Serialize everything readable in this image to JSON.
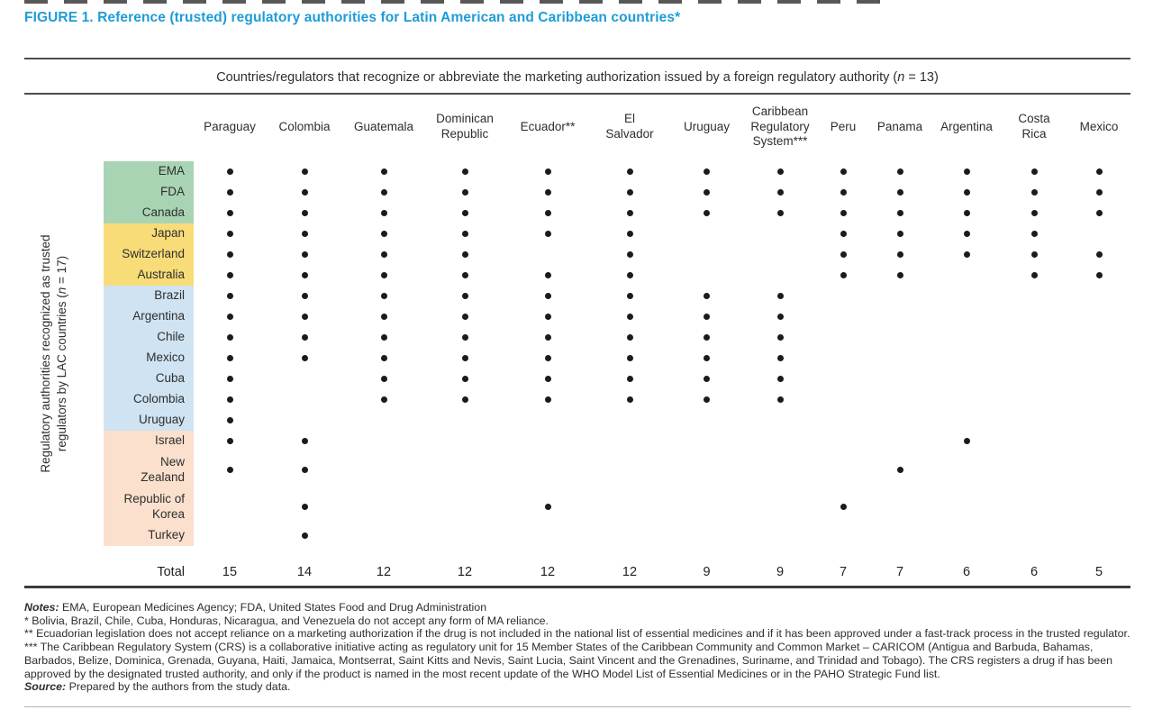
{
  "figure": {
    "title": "FIGURE 1. Reference (trusted) regulatory authorities for Latin American and Caribbean countries*",
    "title_color": "#1e9cd7"
  },
  "table": {
    "span_header": {
      "before_n": "Countries/regulators that recognize or abbreviate the marketing authorization issued by a foreign regulatory authority (",
      "n": "n",
      "after_n": " = 13)"
    },
    "axis_label": {
      "line1": "Regulatory authorities recognized as trusted",
      "line2_before_n": "regulators by LAC countries (",
      "n": "n",
      "line2_after_n": " = 17)"
    },
    "columns": [
      "Paraguay",
      "Colombia",
      "Guatemala",
      "Dominican\nRepublic",
      "Ecuador**",
      "El\nSalvador",
      "Uruguay",
      "Caribbean\nRegulatory\nSystem***",
      "Peru",
      "Panama",
      "Argentina",
      "Costa\nRica",
      "Mexico"
    ],
    "group_colors": {
      "green": "#a9d4b4",
      "yellow": "#f8dc78",
      "blue": "#cfe3f2",
      "peach": "#fae0cd"
    },
    "dot_color": "#1b1b1b",
    "rows": [
      {
        "label": "EMA",
        "group": "green",
        "dots": [
          1,
          1,
          1,
          1,
          1,
          1,
          1,
          1,
          1,
          1,
          1,
          1,
          1
        ]
      },
      {
        "label": "FDA",
        "group": "green",
        "dots": [
          1,
          1,
          1,
          1,
          1,
          1,
          1,
          1,
          1,
          1,
          1,
          1,
          1
        ]
      },
      {
        "label": "Canada",
        "group": "green",
        "dots": [
          1,
          1,
          1,
          1,
          1,
          1,
          1,
          1,
          1,
          1,
          1,
          1,
          1
        ]
      },
      {
        "label": "Japan",
        "group": "yellow",
        "dots": [
          1,
          1,
          1,
          1,
          1,
          1,
          0,
          0,
          1,
          1,
          1,
          1,
          0
        ]
      },
      {
        "label": "Switzerland",
        "group": "yellow",
        "dots": [
          1,
          1,
          1,
          1,
          0,
          1,
          0,
          0,
          1,
          1,
          1,
          1,
          1
        ]
      },
      {
        "label": "Australia",
        "group": "yellow",
        "dots": [
          1,
          1,
          1,
          1,
          1,
          1,
          0,
          0,
          1,
          1,
          0,
          1,
          1
        ]
      },
      {
        "label": "Brazil",
        "group": "blue",
        "dots": [
          1,
          1,
          1,
          1,
          1,
          1,
          1,
          1,
          0,
          0,
          0,
          0,
          0
        ]
      },
      {
        "label": "Argentina",
        "group": "blue",
        "dots": [
          1,
          1,
          1,
          1,
          1,
          1,
          1,
          1,
          0,
          0,
          0,
          0,
          0
        ]
      },
      {
        "label": "Chile",
        "group": "blue",
        "dots": [
          1,
          1,
          1,
          1,
          1,
          1,
          1,
          1,
          0,
          0,
          0,
          0,
          0
        ]
      },
      {
        "label": "Mexico",
        "group": "blue",
        "dots": [
          1,
          1,
          1,
          1,
          1,
          1,
          1,
          1,
          0,
          0,
          0,
          0,
          0
        ]
      },
      {
        "label": "Cuba",
        "group": "blue",
        "dots": [
          1,
          0,
          1,
          1,
          1,
          1,
          1,
          1,
          0,
          0,
          0,
          0,
          0
        ]
      },
      {
        "label": "Colombia",
        "group": "blue",
        "dots": [
          1,
          0,
          1,
          1,
          1,
          1,
          1,
          1,
          0,
          0,
          0,
          0,
          0
        ]
      },
      {
        "label": "Uruguay",
        "group": "blue",
        "dots": [
          1,
          0,
          0,
          0,
          0,
          0,
          0,
          0,
          0,
          0,
          0,
          0,
          0
        ]
      },
      {
        "label": "Israel",
        "group": "peach",
        "dots": [
          1,
          1,
          0,
          0,
          0,
          0,
          0,
          0,
          0,
          0,
          1,
          0,
          0
        ]
      },
      {
        "label": "New\nZealand",
        "group": "peach",
        "dots": [
          1,
          1,
          0,
          0,
          0,
          0,
          0,
          0,
          0,
          1,
          0,
          0,
          0
        ]
      },
      {
        "label": "Republic of\nKorea",
        "group": "peach",
        "dots": [
          0,
          1,
          0,
          0,
          1,
          0,
          0,
          0,
          1,
          0,
          0,
          0,
          0
        ]
      },
      {
        "label": "Turkey",
        "group": "peach",
        "dots": [
          0,
          1,
          0,
          0,
          0,
          0,
          0,
          0,
          0,
          0,
          0,
          0,
          0
        ]
      }
    ],
    "total_label": "Total",
    "totals": [
      15,
      14,
      12,
      12,
      12,
      12,
      9,
      9,
      7,
      7,
      6,
      6,
      5
    ]
  },
  "chart_data": {
    "type": "table",
    "title": "FIGURE 1. Reference (trusted) regulatory authorities for Latin American and Caribbean countries*",
    "columns": [
      "Paraguay",
      "Colombia",
      "Guatemala",
      "Dominican Republic",
      "Ecuador**",
      "El Salvador",
      "Uruguay",
      "Caribbean Regulatory System***",
      "Peru",
      "Panama",
      "Argentina",
      "Costa Rica",
      "Mexico"
    ],
    "row_header": "Regulatory authorities recognized as trusted regulators by LAC countries (n = 17)",
    "column_header": "Countries/regulators that recognize or abbreviate the marketing authorization issued by a foreign regulatory authority (n = 13)",
    "rows": [
      "EMA",
      "FDA",
      "Canada",
      "Japan",
      "Switzerland",
      "Australia",
      "Brazil",
      "Argentina",
      "Chile",
      "Mexico",
      "Cuba",
      "Colombia",
      "Uruguay",
      "Israel",
      "New Zealand",
      "Republic of Korea",
      "Turkey"
    ],
    "matrix": [
      [
        1,
        1,
        1,
        1,
        1,
        1,
        1,
        1,
        1,
        1,
        1,
        1,
        1
      ],
      [
        1,
        1,
        1,
        1,
        1,
        1,
        1,
        1,
        1,
        1,
        1,
        1,
        1
      ],
      [
        1,
        1,
        1,
        1,
        1,
        1,
        1,
        1,
        1,
        1,
        1,
        1,
        1
      ],
      [
        1,
        1,
        1,
        1,
        1,
        1,
        0,
        0,
        1,
        1,
        1,
        1,
        0
      ],
      [
        1,
        1,
        1,
        1,
        0,
        1,
        0,
        0,
        1,
        1,
        1,
        1,
        1
      ],
      [
        1,
        1,
        1,
        1,
        1,
        1,
        0,
        0,
        1,
        1,
        0,
        1,
        1
      ],
      [
        1,
        1,
        1,
        1,
        1,
        1,
        1,
        1,
        0,
        0,
        0,
        0,
        0
      ],
      [
        1,
        1,
        1,
        1,
        1,
        1,
        1,
        1,
        0,
        0,
        0,
        0,
        0
      ],
      [
        1,
        1,
        1,
        1,
        1,
        1,
        1,
        1,
        0,
        0,
        0,
        0,
        0
      ],
      [
        1,
        1,
        1,
        1,
        1,
        1,
        1,
        1,
        0,
        0,
        0,
        0,
        0
      ],
      [
        1,
        0,
        1,
        1,
        1,
        1,
        1,
        1,
        0,
        0,
        0,
        0,
        0
      ],
      [
        1,
        0,
        1,
        1,
        1,
        1,
        1,
        1,
        0,
        0,
        0,
        0,
        0
      ],
      [
        1,
        0,
        0,
        0,
        0,
        0,
        0,
        0,
        0,
        0,
        0,
        0,
        0
      ],
      [
        1,
        1,
        0,
        0,
        0,
        0,
        0,
        0,
        0,
        0,
        1,
        0,
        0
      ],
      [
        1,
        1,
        0,
        0,
        0,
        0,
        0,
        0,
        0,
        1,
        0,
        0,
        0
      ],
      [
        0,
        1,
        0,
        0,
        1,
        0,
        0,
        0,
        1,
        0,
        0,
        0,
        0
      ],
      [
        0,
        1,
        0,
        0,
        0,
        0,
        0,
        0,
        0,
        0,
        0,
        0,
        0
      ]
    ],
    "totals": [
      15,
      14,
      12,
      12,
      12,
      12,
      9,
      9,
      7,
      7,
      6,
      6,
      5
    ]
  },
  "notes": {
    "lines": [
      {
        "lead": "Notes:",
        "text": " EMA, European Medicines Agency; FDA, United States Food and Drug Administration"
      },
      {
        "lead": "",
        "text": "* Bolivia, Brazil, Chile, Cuba, Honduras, Nicaragua, and Venezuela do not accept any form of MA reliance."
      },
      {
        "lead": "",
        "text": "** Ecuadorian legislation does not accept reliance on a marketing authorization if the drug is not included in the national list of essential medicines and if it has been approved under a fast-track process in the trusted regulator."
      },
      {
        "lead": "",
        "text": "*** The Caribbean Regulatory System (CRS) is a collaborative initiative acting as regulatory unit for 15 Member States of the Caribbean Community and Common Market – CARICOM (Antigua and Barbuda, Bahamas, Barbados, Belize, Dominica, Grenada, Guyana, Haiti, Jamaica, Montserrat, Saint Kitts and Nevis, Saint Lucia, Saint Vincent and the Grenadines, Suriname, and Trinidad and Tobago). The CRS registers a drug if has been approved by the designated trusted authority, and only if the product is named in the most recent update of the WHO Model List of Essential Medicines or in the PAHO Strategic Fund list."
      },
      {
        "lead": "Source:",
        "text": " Prepared by the authors from the study data."
      }
    ]
  }
}
